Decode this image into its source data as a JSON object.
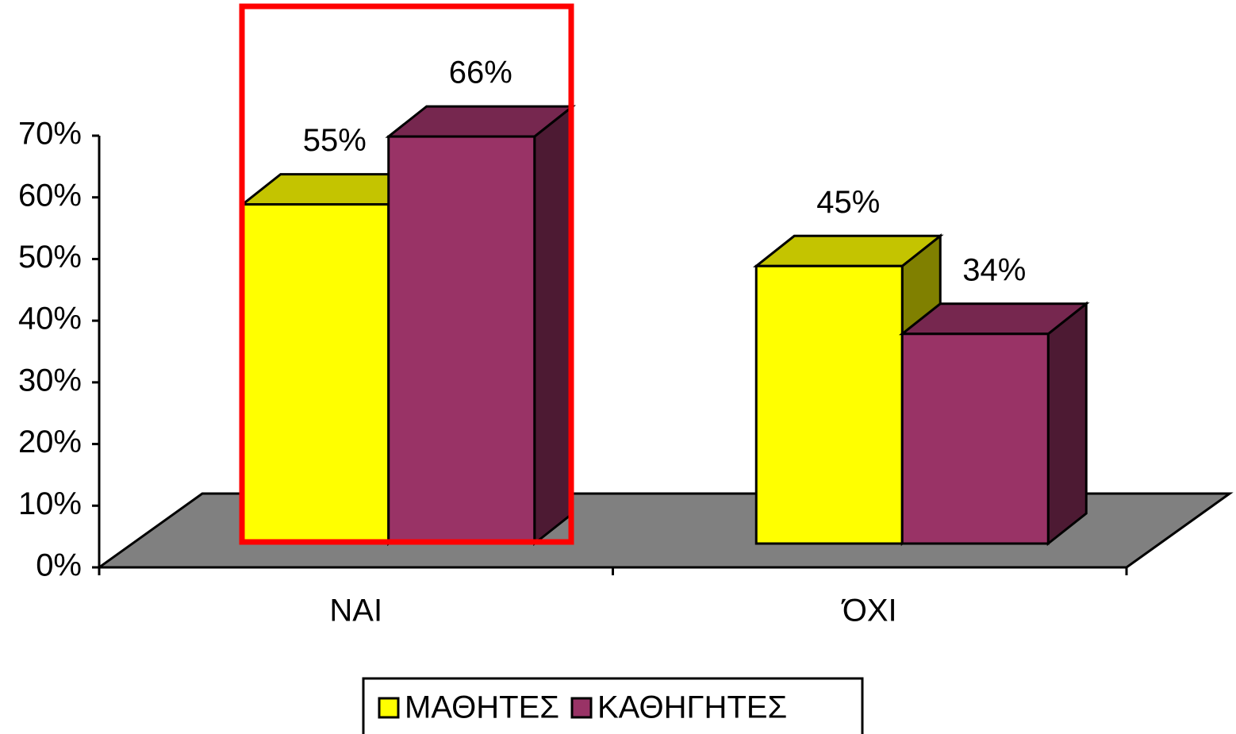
{
  "chart_data": {
    "type": "bar3d",
    "categories": [
      "ΝΑΙ",
      "ΌΧΙ"
    ],
    "series": [
      {
        "name": "ΜΑΘΗΤΕΣ",
        "color": "#ffff00",
        "values": [
          55,
          45
        ],
        "value_labels": [
          "55%",
          "45%"
        ]
      },
      {
        "name": "ΚΑΘΗΓΗΤΕΣ",
        "color": "#993366",
        "values": [
          66,
          34
        ],
        "value_labels": [
          "66%",
          "34%"
        ]
      }
    ],
    "ylim": [
      0,
      70
    ],
    "yticks": [
      {
        "value": 0,
        "label": "0%"
      },
      {
        "value": 10,
        "label": "10%"
      },
      {
        "value": 20,
        "label": "20%"
      },
      {
        "value": 30,
        "label": "30%"
      },
      {
        "value": 40,
        "label": "40%"
      },
      {
        "value": 50,
        "label": "50%"
      },
      {
        "value": 60,
        "label": "60%"
      },
      {
        "value": 70,
        "label": "70%"
      }
    ],
    "legend": "bottom"
  }
}
